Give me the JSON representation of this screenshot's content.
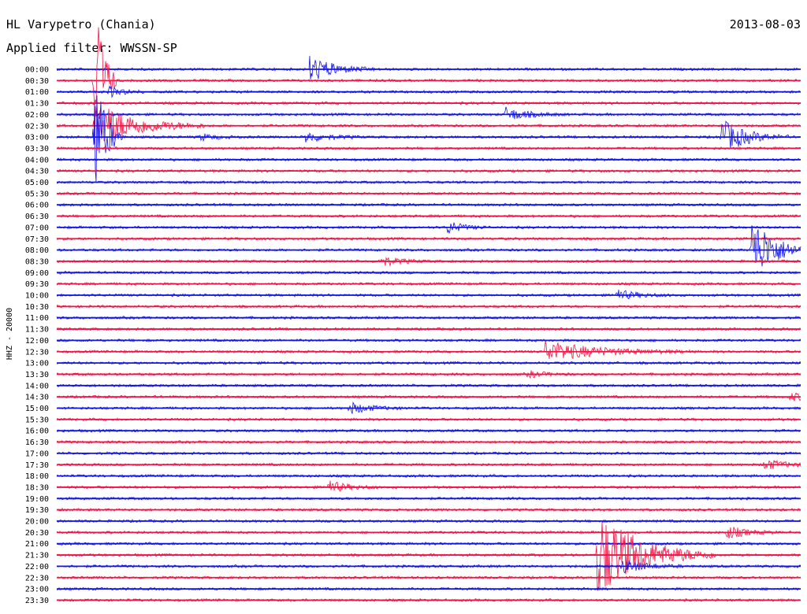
{
  "header": {
    "station": "HL Varypetro (Chania)",
    "date": "2013-08-03",
    "filter": "Applied filter: WWSSN-SP"
  },
  "chart_data": {
    "type": "line",
    "title": "HL Varypetro (Chania)",
    "ylabel": "HHZ - 20000",
    "grid": false,
    "legend": "none",
    "colors": {
      "blue": "#1414e6",
      "red": "#f01446"
    },
    "color_cycle": [
      "blue",
      "red"
    ],
    "rows": [
      "00:00",
      "00:30",
      "01:00",
      "01:30",
      "02:00",
      "02:30",
      "03:00",
      "03:30",
      "04:00",
      "04:30",
      "05:00",
      "05:30",
      "06:00",
      "06:30",
      "07:00",
      "07:30",
      "08:00",
      "08:30",
      "09:00",
      "09:30",
      "10:00",
      "10:30",
      "11:00",
      "11:30",
      "12:00",
      "12:30",
      "13:00",
      "13:30",
      "14:00",
      "14:30",
      "15:00",
      "15:30",
      "16:00",
      "16:30",
      "17:00",
      "17:30",
      "18:00",
      "18:30",
      "19:00",
      "19:30",
      "20:00",
      "20:30",
      "21:00",
      "21:30",
      "22:00",
      "22:30",
      "23:00",
      "23:30"
    ],
    "row_minutes": 30,
    "events": [
      {
        "row": 0,
        "minute": 10.2,
        "amplitude": 1.2,
        "duration": 0.9
      },
      {
        "row": 1,
        "minute": 1.5,
        "amplitude": 10.5,
        "duration": 0.3
      },
      {
        "row": 2,
        "minute": 2.1,
        "amplitude": 0.5,
        "duration": 0.5
      },
      {
        "row": 4,
        "minute": 18.1,
        "amplitude": 0.6,
        "duration": 0.8
      },
      {
        "row": 5,
        "minute": 1.5,
        "amplitude": 2.2,
        "duration": 1.5
      },
      {
        "row": 6,
        "minute": 1.5,
        "amplitude": 6.5,
        "duration": 0.4
      },
      {
        "row": 6,
        "minute": 10.0,
        "amplitude": 0.5,
        "duration": 0.8
      },
      {
        "row": 6,
        "minute": 26.8,
        "amplitude": 1.6,
        "duration": 0.9
      },
      {
        "row": 6,
        "minute": 5.8,
        "amplitude": 0.3,
        "duration": 0.6
      },
      {
        "row": 14,
        "minute": 15.7,
        "amplitude": 0.6,
        "duration": 0.6
      },
      {
        "row": 16,
        "minute": 28.0,
        "amplitude": 3.0,
        "duration": 0.9
      },
      {
        "row": 17,
        "minute": 13.0,
        "amplitude": 0.5,
        "duration": 0.7
      },
      {
        "row": 20,
        "minute": 22.5,
        "amplitude": 0.5,
        "duration": 0.8
      },
      {
        "row": 25,
        "minute": 19.7,
        "amplitude": 0.9,
        "duration": 2.0
      },
      {
        "row": 27,
        "minute": 19.0,
        "amplitude": 0.3,
        "duration": 0.6
      },
      {
        "row": 29,
        "minute": 29.6,
        "amplitude": 0.4,
        "duration": 0.5
      },
      {
        "row": 30,
        "minute": 11.8,
        "amplitude": 0.5,
        "duration": 0.8
      },
      {
        "row": 35,
        "minute": 28.5,
        "amplitude": 0.5,
        "duration": 0.8
      },
      {
        "row": 37,
        "minute": 10.9,
        "amplitude": 0.6,
        "duration": 0.7
      },
      {
        "row": 41,
        "minute": 27.0,
        "amplitude": 0.6,
        "duration": 0.7
      },
      {
        "row": 43,
        "minute": 21.8,
        "amplitude": 4.0,
        "duration": 1.6
      },
      {
        "row": 44,
        "minute": 22.8,
        "amplitude": 0.6,
        "duration": 0.9
      }
    ]
  }
}
